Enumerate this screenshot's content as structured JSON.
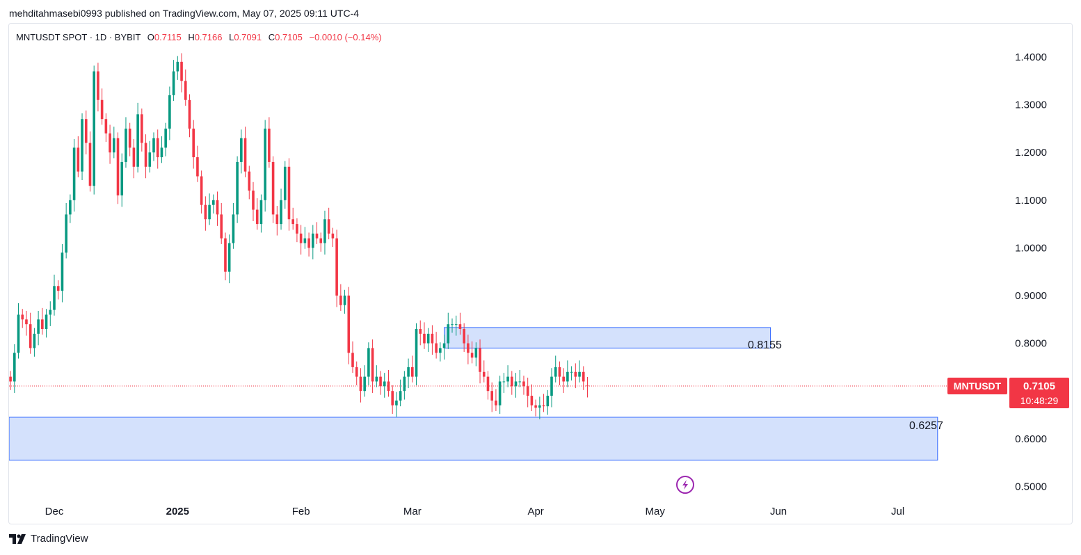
{
  "header": {
    "published": "mehditahmasebi0993 published on TradingView.com, May 07, 2025 09:11 UTC-4"
  },
  "legend": {
    "symbol": "MNTUSDT SPOT · 1D · BYBIT",
    "open_label": "O",
    "open": "0.7115",
    "high_label": "H",
    "high": "0.7166",
    "low_label": "L",
    "low": "0.7091",
    "close_label": "C",
    "close": "0.7105",
    "change": "−0.0010 (−0.14%)"
  },
  "price_tag": {
    "symbol": "MNTUSDT",
    "price": "0.7105",
    "countdown": "10:48:29"
  },
  "footer": {
    "brand": "TradingView"
  },
  "colors": {
    "up": "#089981",
    "down": "#f23645",
    "zone_fill": "#d4e1fc",
    "zone_stroke": "#2962ff",
    "last_price_line": "#f23645",
    "purple_icon": "#9c27b0"
  },
  "icons": {
    "brand_logo": "tradingview-logo-icon",
    "lightning": "lightning-icon"
  },
  "chart_data": {
    "type": "candlestick",
    "y_axis": {
      "min": 0.45,
      "max": 1.44,
      "ticks": [
        "1.4000",
        "1.3000",
        "1.2000",
        "1.1000",
        "1.0000",
        "0.9000",
        "0.8000",
        "0.6000",
        "0.5000"
      ],
      "tick_values": [
        1.4,
        1.3,
        1.2,
        1.1,
        1.0,
        0.9,
        0.8,
        0.6,
        0.5
      ]
    },
    "x_axis": {
      "labels": [
        {
          "text": "Dec",
          "day": 0,
          "bold": false
        },
        {
          "text": "2025",
          "day": 31,
          "bold": true
        },
        {
          "text": "Feb",
          "day": 62,
          "bold": false
        },
        {
          "text": "Mar",
          "day": 90,
          "bold": false
        },
        {
          "text": "Apr",
          "day": 121,
          "bold": false
        },
        {
          "text": "May",
          "day": 151,
          "bold": false
        },
        {
          "text": "Jun",
          "day": 182,
          "bold": false
        },
        {
          "text": "Jul",
          "day": 212,
          "bold": false
        }
      ]
    },
    "last_price": 0.7105,
    "zones": [
      {
        "label": "0.8155",
        "top": 0.833,
        "bottom": 0.79,
        "start_day": 98,
        "end_day": 180
      },
      {
        "label": "0.6257",
        "top": 0.645,
        "bottom": 0.555,
        "start_day": -12,
        "end_day": 222
      }
    ],
    "candles": {
      "start_day": -11,
      "close_start": 0.72,
      "closes": [
        0.72,
        0.78,
        0.86,
        0.85,
        0.84,
        0.79,
        0.82,
        0.85,
        0.83,
        0.86,
        0.87,
        0.92,
        0.91,
        0.99,
        1.07,
        1.1,
        1.21,
        1.16,
        1.27,
        1.22,
        1.13,
        1.37,
        1.31,
        1.27,
        1.24,
        1.2,
        1.23,
        1.11,
        1.18,
        1.25,
        1.21,
        1.17,
        1.28,
        1.22,
        1.17,
        1.2,
        1.23,
        1.19,
        1.21,
        1.25,
        1.32,
        1.37,
        1.39,
        1.35,
        1.31,
        1.25,
        1.19,
        1.15,
        1.09,
        1.06,
        1.09,
        1.1,
        1.07,
        1.02,
        0.95,
        1.01,
        1.07,
        1.18,
        1.23,
        1.16,
        1.12,
        1.08,
        1.05,
        1.1,
        1.25,
        1.18,
        1.07,
        1.05,
        1.1,
        1.17,
        1.06,
        1.05,
        1.03,
        1.01,
        1.02,
        1.0,
        1.03,
        1.02,
        1.01,
        1.06,
        1.03,
        1.02,
        0.9,
        0.88,
        0.9,
        0.78,
        0.75,
        0.73,
        0.7,
        0.73,
        0.79,
        0.72,
        0.73,
        0.71,
        0.72,
        0.7,
        0.67,
        0.68,
        0.7,
        0.73,
        0.75,
        0.73,
        0.83,
        0.82,
        0.8,
        0.82,
        0.8,
        0.78,
        0.79,
        0.8,
        0.84,
        0.84,
        0.84,
        0.83,
        0.8,
        0.78,
        0.77,
        0.79,
        0.74,
        0.73,
        0.7,
        0.68,
        0.67,
        0.72,
        0.72,
        0.73,
        0.71,
        0.72,
        0.72,
        0.71,
        0.69,
        0.67,
        0.665,
        0.67,
        0.668,
        0.69,
        0.73,
        0.75,
        0.73,
        0.72,
        0.74,
        0.74,
        0.73,
        0.74,
        0.72,
        0.7105
      ],
      "opens": [
        0.73,
        0.72,
        0.78,
        0.86,
        0.85,
        0.84,
        0.79,
        0.82,
        0.85,
        0.83,
        0.86,
        0.87,
        0.92,
        0.91,
        0.99,
        1.07,
        1.1,
        1.21,
        1.16,
        1.27,
        1.22,
        1.13,
        1.37,
        1.31,
        1.27,
        1.24,
        1.2,
        1.23,
        1.11,
        1.18,
        1.25,
        1.21,
        1.17,
        1.28,
        1.22,
        1.17,
        1.2,
        1.23,
        1.19,
        1.21,
        1.25,
        1.32,
        1.37,
        1.39,
        1.35,
        1.31,
        1.25,
        1.19,
        1.15,
        1.09,
        1.06,
        1.09,
        1.1,
        1.07,
        1.02,
        0.95,
        1.01,
        1.07,
        1.18,
        1.23,
        1.16,
        1.12,
        1.08,
        1.05,
        1.1,
        1.25,
        1.18,
        1.07,
        1.05,
        1.1,
        1.17,
        1.06,
        1.05,
        1.03,
        1.01,
        1.02,
        1.0,
        1.03,
        1.02,
        1.01,
        1.06,
        1.03,
        1.02,
        0.9,
        0.88,
        0.9,
        0.78,
        0.75,
        0.73,
        0.7,
        0.73,
        0.79,
        0.72,
        0.73,
        0.71,
        0.72,
        0.7,
        0.67,
        0.68,
        0.7,
        0.73,
        0.75,
        0.73,
        0.83,
        0.82,
        0.8,
        0.82,
        0.8,
        0.78,
        0.79,
        0.8,
        0.84,
        0.84,
        0.84,
        0.83,
        0.8,
        0.78,
        0.77,
        0.79,
        0.74,
        0.73,
        0.7,
        0.68,
        0.67,
        0.72,
        0.72,
        0.73,
        0.71,
        0.72,
        0.72,
        0.71,
        0.69,
        0.67,
        0.665,
        0.67,
        0.668,
        0.69,
        0.73,
        0.75,
        0.73,
        0.72,
        0.74,
        0.74,
        0.73,
        0.74,
        0.7115
      ]
    }
  }
}
